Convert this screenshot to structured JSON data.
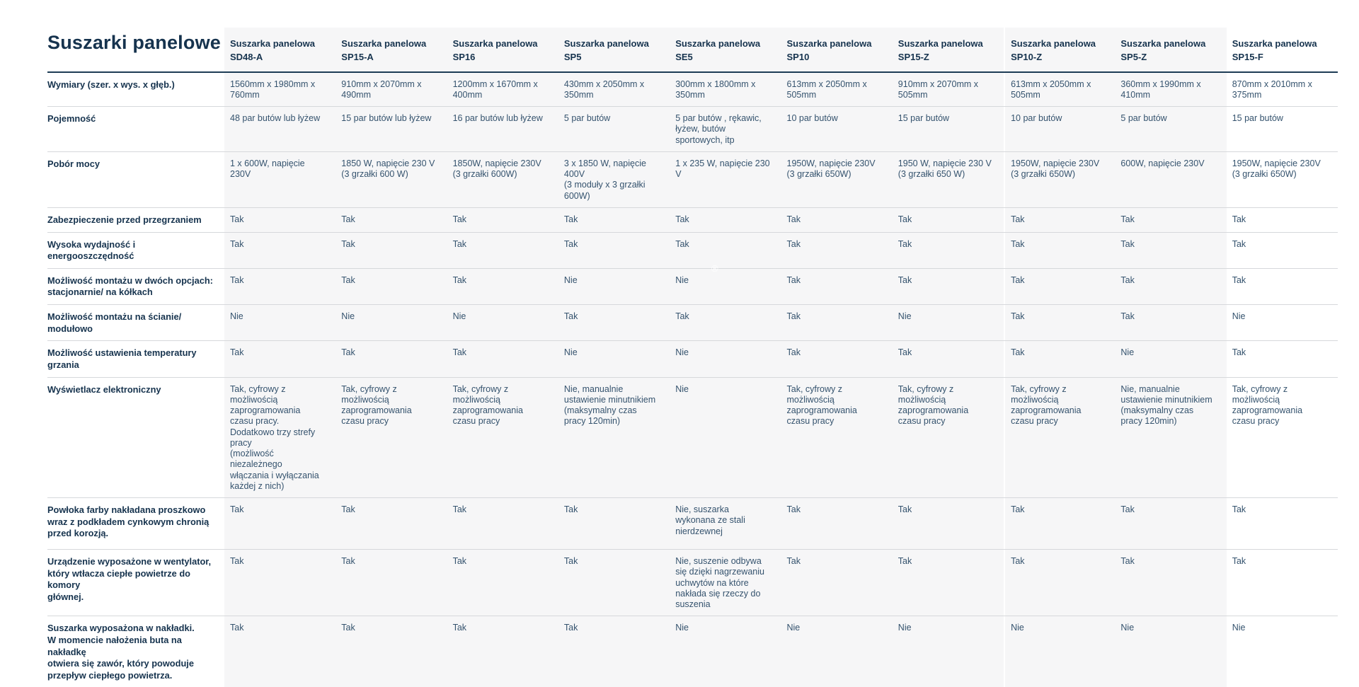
{
  "page": {
    "title": "Suszarki panelowe",
    "accent_color": "#e8434e",
    "band_color": "#f6f6f7",
    "watermark": "®"
  },
  "table": {
    "products": [
      {
        "name": "Suszarka panelowa",
        "model": "SD48-A"
      },
      {
        "name": "Suszarka panelowa",
        "model": "SP15-A"
      },
      {
        "name": "Suszarka panelowa",
        "model": "SP16"
      },
      {
        "name": "Suszarka panelowa",
        "model": "SP5"
      },
      {
        "name": "Suszarka panelowa",
        "model": "SE5"
      },
      {
        "name": "Suszarka panelowa",
        "model": "SP10"
      },
      {
        "name": "Suszarka panelowa",
        "model": "SP15-Z"
      },
      {
        "name": "Suszarka panelowa",
        "model": "SP10-Z"
      },
      {
        "name": "Suszarka panelowa",
        "model": "SP5-Z"
      },
      {
        "name": "Suszarka panelowa",
        "model": "SP15-F"
      }
    ],
    "rows": [
      {
        "label": "Wymiary (szer. x wys. x głęb.)",
        "values": [
          "1560mm x 1980mm x 760mm",
          "910mm x 2070mm x 490mm",
          "1200mm x 1670mm x 400mm",
          "430mm x 2050mm x 350mm",
          "300mm x 1800mm x 350mm",
          "613mm x 2050mm x 505mm",
          "910mm x 2070mm x 505mm",
          "613mm x 2050mm x 505mm",
          "360mm x 1990mm x 410mm",
          "870mm x 2010mm x 375mm"
        ]
      },
      {
        "label": "Pojemność",
        "values": [
          "48 par butów lub łyżew",
          "15 par butów lub łyżew",
          "16 par butów lub łyżew",
          "5 par butów",
          "5 par butów , rękawic, łyżew, butów sportowych, itp",
          "10 par butów",
          "15 par butów",
          "10 par butów",
          "5 par butów",
          "15 par butów"
        ]
      },
      {
        "label": "Pobór mocy",
        "values": [
          "1 x 600W, napięcie 230V",
          "1850 W, napięcie 230 V\n(3 grzałki 600 W)",
          "1850W, napięcie 230V\n(3 grzałki 600W)",
          "3 x 1850 W, napięcie 400V\n(3 moduły x 3 grzałki 600W)",
          "1 x 235 W, napięcie 230 V",
          "1950W, napięcie 230V\n(3 grzałki 650W)",
          "1950 W, napięcie 230 V\n(3 grzałki 650 W)",
          "1950W, napięcie 230V\n(3 grzałki 650W)",
          "600W, napięcie 230V",
          "1950W, napięcie 230V\n(3 grzałki 650W)"
        ]
      },
      {
        "label": "Zabezpieczenie przed przegrzaniem",
        "values": [
          "Tak",
          "Tak",
          "Tak",
          "Tak",
          "Tak",
          "Tak",
          "Tak",
          "Tak",
          "Tak",
          "Tak"
        ]
      },
      {
        "label": "Wysoka wydajność i energooszczędność",
        "values": [
          "Tak",
          "Tak",
          "Tak",
          "Tak",
          "Tak",
          "Tak",
          "Tak",
          "Tak",
          "Tak",
          "Tak"
        ]
      },
      {
        "label": "Możliwość montażu w dwóch opcjach:\nstacjonarnie/ na kółkach",
        "values": [
          "Tak",
          "Tak",
          "Tak",
          "Nie",
          "Nie",
          "Tak",
          "Tak",
          "Tak",
          "Tak",
          "Tak"
        ]
      },
      {
        "label": "Możliwość montażu na ścianie/ modułowo",
        "values": [
          "Nie",
          "Nie",
          "Nie",
          "Tak",
          "Tak",
          "Tak",
          "Nie",
          "Tak",
          "Tak",
          "Nie"
        ]
      },
      {
        "label": "Możliwość ustawienia temperatury grzania",
        "values": [
          "Tak",
          "Tak",
          "Tak",
          "Nie",
          "Nie",
          "Tak",
          "Tak",
          "Tak",
          "Nie",
          "Tak"
        ]
      },
      {
        "label": "Wyświetlacz elektroniczny",
        "values": [
          "Tak, cyfrowy z możliwością\nzaprogramowania\nczasu pracy.\nDodatkowo trzy strefy pracy\n(możliwość niezależnego\nwłączania i wyłączania\nkażdej z nich)",
          "Tak, cyfrowy z możliwością zaprogramowania czasu pracy",
          "Tak, cyfrowy z możliwością zaprogramowania czasu pracy",
          "Nie, manualnie ustawienie minutnikiem (maksymalny czas pracy 120min)",
          "Nie",
          "Tak, cyfrowy z możliwością zaprogramowania czasu pracy",
          "Tak, cyfrowy z możliwością zaprogramowania czasu pracy",
          "Tak, cyfrowy z możliwością zaprogramowania czasu pracy",
          "Nie, manualnie ustawienie minutnikiem (maksymalny czas pracy 120min)",
          "Tak, cyfrowy z możliwością zaprogramowania czasu pracy"
        ]
      },
      {
        "label": "Powłoka farby nakładana proszkowo\nwraz z podkładem cynkowym chronią\nprzed korozją.",
        "values": [
          "Tak",
          "Tak",
          "Tak",
          "Tak",
          "Nie, suszarka wykonana ze stali nierdzewnej",
          "Tak",
          "Tak",
          "Tak",
          "Tak",
          "Tak"
        ]
      },
      {
        "label": "Urządzenie wyposażone w wentylator,\nktóry wtłacza ciepłe powietrze do komory\ngłównej.",
        "values": [
          "Tak",
          "Tak",
          "Tak",
          "Tak",
          "Nie, suszenie odbywa się dzięki nagrzewaniu uchwytów na które nakłada się rzeczy do suszenia",
          "Tak",
          "Tak",
          "Tak",
          "Tak",
          "Tak"
        ]
      },
      {
        "label": "Suszarka wyposażona w nakładki.\nW momencie nałożenia buta na nakładkę\notwiera się zawór, który powoduje\nprzepływ ciepłego powietrza.",
        "values": [
          "Tak",
          "Tak",
          "Tak",
          "Tak",
          "Nie",
          "Nie",
          "Nie",
          "Nie",
          "Nie",
          "Nie"
        ]
      }
    ]
  }
}
